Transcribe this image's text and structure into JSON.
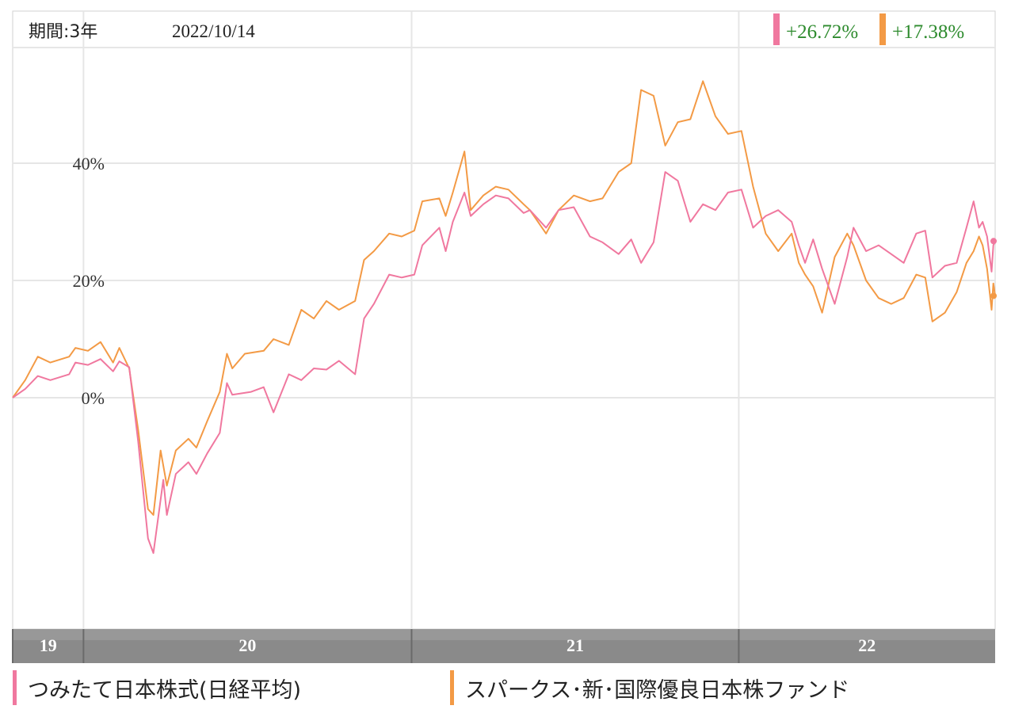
{
  "header": {
    "period_label": "期間:3年",
    "date": "2022/10/14"
  },
  "badges": [
    {
      "text": "+26.72%",
      "color": "#f0789f"
    },
    {
      "text": "+17.38%",
      "color": "#f39a45"
    }
  ],
  "legend": [
    {
      "label": "つみたて日本株式(日経平均)",
      "color": "#f0789f"
    },
    {
      "label": "スパークス･新･国際優良日本株ファンド",
      "color": "#f39a45"
    }
  ],
  "colors": {
    "badge_text": "#2e8b2e",
    "axis_bar": "#8a8a8a",
    "grid": "#e6e6e6"
  },
  "chart_data": {
    "type": "line",
    "x_range": [
      "2019-10-14",
      "2022-10-14"
    ],
    "ylim": [
      -40,
      60
    ],
    "y_ticks": [
      {
        "label": "0%",
        "value": 0
      },
      {
        "label": "20%",
        "value": 20
      },
      {
        "label": "40%",
        "value": 40
      }
    ],
    "x_band_labels": [
      {
        "label": "19",
        "start": "2019-10-14",
        "end": "2020-01-01"
      },
      {
        "label": "20",
        "start": "2020-01-01",
        "end": "2021-01-01"
      },
      {
        "label": "21",
        "start": "2021-01-01",
        "end": "2022-01-01"
      },
      {
        "label": "22",
        "start": "2022-01-01",
        "end": "2022-10-14"
      }
    ],
    "series": [
      {
        "name": "つみたて日本株式(日経平均)",
        "color": "#f0789f",
        "last_value": 26.72,
        "points": [
          [
            "2019-10-14",
            0
          ],
          [
            "2019-10-28",
            1.5
          ],
          [
            "2019-11-11",
            3.7
          ],
          [
            "2019-11-25",
            3.0
          ],
          [
            "2019-12-16",
            4.0
          ],
          [
            "2019-12-23",
            6.0
          ],
          [
            "2020-01-06",
            5.6
          ],
          [
            "2020-01-20",
            6.6
          ],
          [
            "2020-02-03",
            4.5
          ],
          [
            "2020-02-10",
            6.2
          ],
          [
            "2020-02-21",
            5.2
          ],
          [
            "2020-03-02",
            -7.5
          ],
          [
            "2020-03-13",
            -24.0
          ],
          [
            "2020-03-19",
            -26.5
          ],
          [
            "2020-03-30",
            -14.0
          ],
          [
            "2020-04-03",
            -20.0
          ],
          [
            "2020-04-13",
            -13.0
          ],
          [
            "2020-04-27",
            -11.0
          ],
          [
            "2020-05-06",
            -13.0
          ],
          [
            "2020-05-18",
            -9.5
          ],
          [
            "2020-06-01",
            -6.0
          ],
          [
            "2020-06-09",
            2.5
          ],
          [
            "2020-06-15",
            0.5
          ],
          [
            "2020-07-06",
            1.0
          ],
          [
            "2020-07-20",
            1.8
          ],
          [
            "2020-07-31",
            -2.5
          ],
          [
            "2020-08-17",
            4.0
          ],
          [
            "2020-08-31",
            3.0
          ],
          [
            "2020-09-14",
            5.0
          ],
          [
            "2020-09-28",
            4.8
          ],
          [
            "2020-10-12",
            6.3
          ],
          [
            "2020-10-30",
            4.0
          ],
          [
            "2020-11-09",
            13.5
          ],
          [
            "2020-11-20",
            16.0
          ],
          [
            "2020-12-07",
            21.0
          ],
          [
            "2020-12-21",
            20.5
          ],
          [
            "2021-01-04",
            21.0
          ],
          [
            "2021-01-13",
            26.0
          ],
          [
            "2021-02-01",
            29.0
          ],
          [
            "2021-02-08",
            25.0
          ],
          [
            "2021-02-16",
            30.0
          ],
          [
            "2021-03-01",
            35.0
          ],
          [
            "2021-03-08",
            31.0
          ],
          [
            "2021-03-22",
            33.0
          ],
          [
            "2021-04-05",
            34.5
          ],
          [
            "2021-04-19",
            34.0
          ],
          [
            "2021-05-06",
            31.5
          ],
          [
            "2021-05-13",
            32.0
          ],
          [
            "2021-05-31",
            29.0
          ],
          [
            "2021-06-14",
            32.0
          ],
          [
            "2021-07-01",
            32.5
          ],
          [
            "2021-07-19",
            27.5
          ],
          [
            "2021-08-02",
            26.5
          ],
          [
            "2021-08-20",
            24.5
          ],
          [
            "2021-09-03",
            27.0
          ],
          [
            "2021-09-14",
            23.0
          ],
          [
            "2021-09-28",
            26.5
          ],
          [
            "2021-10-11",
            38.5
          ],
          [
            "2021-10-25",
            37.0
          ],
          [
            "2021-11-08",
            30.0
          ],
          [
            "2021-11-22",
            33.0
          ],
          [
            "2021-12-06",
            32.0
          ],
          [
            "2021-12-20",
            35.0
          ],
          [
            "2022-01-04",
            35.5
          ],
          [
            "2022-01-17",
            29.0
          ],
          [
            "2022-01-31",
            31.0
          ],
          [
            "2022-02-14",
            32.0
          ],
          [
            "2022-03-01",
            30.0
          ],
          [
            "2022-03-09",
            26.0
          ],
          [
            "2022-03-16",
            23.0
          ],
          [
            "2022-03-25",
            27.0
          ],
          [
            "2022-04-04",
            22.0
          ],
          [
            "2022-04-18",
            16.0
          ],
          [
            "2022-05-02",
            24.0
          ],
          [
            "2022-05-09",
            29.0
          ],
          [
            "2022-05-23",
            25.0
          ],
          [
            "2022-06-06",
            26.0
          ],
          [
            "2022-06-20",
            24.5
          ],
          [
            "2022-07-04",
            23.0
          ],
          [
            "2022-07-18",
            28.0
          ],
          [
            "2022-07-28",
            28.5
          ],
          [
            "2022-08-05",
            20.5
          ],
          [
            "2022-08-19",
            22.5
          ],
          [
            "2022-09-01",
            23.0
          ],
          [
            "2022-09-12",
            29.0
          ],
          [
            "2022-09-20",
            33.5
          ],
          [
            "2022-09-26",
            29.0
          ],
          [
            "2022-09-30",
            30.0
          ],
          [
            "2022-10-05",
            27.5
          ],
          [
            "2022-10-10",
            21.5
          ],
          [
            "2022-10-12",
            26.0
          ],
          [
            "2022-10-14",
            26.72
          ]
        ]
      },
      {
        "name": "スパークス･新･国際優良日本株ファンド",
        "color": "#f39a45",
        "last_value": 17.38,
        "points": [
          [
            "2019-10-14",
            0
          ],
          [
            "2019-10-28",
            3.0
          ],
          [
            "2019-11-11",
            7.0
          ],
          [
            "2019-11-25",
            6.0
          ],
          [
            "2019-12-16",
            7.0
          ],
          [
            "2019-12-23",
            8.5
          ],
          [
            "2020-01-06",
            8.0
          ],
          [
            "2020-01-20",
            9.5
          ],
          [
            "2020-02-03",
            6.0
          ],
          [
            "2020-02-10",
            8.5
          ],
          [
            "2020-02-21",
            5.0
          ],
          [
            "2020-03-02",
            -5.5
          ],
          [
            "2020-03-13",
            -19.0
          ],
          [
            "2020-03-19",
            -20.0
          ],
          [
            "2020-03-27",
            -9.0
          ],
          [
            "2020-04-03",
            -15.0
          ],
          [
            "2020-04-13",
            -9.0
          ],
          [
            "2020-04-27",
            -7.0
          ],
          [
            "2020-05-06",
            -8.5
          ],
          [
            "2020-05-18",
            -4.0
          ],
          [
            "2020-06-01",
            1.0
          ],
          [
            "2020-06-09",
            7.5
          ],
          [
            "2020-06-15",
            5.0
          ],
          [
            "2020-06-29",
            7.5
          ],
          [
            "2020-07-20",
            8.0
          ],
          [
            "2020-07-31",
            10.0
          ],
          [
            "2020-08-17",
            9.0
          ],
          [
            "2020-08-31",
            15.0
          ],
          [
            "2020-09-14",
            13.5
          ],
          [
            "2020-09-28",
            16.5
          ],
          [
            "2020-10-12",
            15.0
          ],
          [
            "2020-10-30",
            16.5
          ],
          [
            "2020-11-09",
            23.5
          ],
          [
            "2020-11-20",
            25.0
          ],
          [
            "2020-12-07",
            28.0
          ],
          [
            "2020-12-21",
            27.5
          ],
          [
            "2021-01-04",
            28.5
          ],
          [
            "2021-01-13",
            33.5
          ],
          [
            "2021-02-01",
            34.0
          ],
          [
            "2021-02-08",
            31.0
          ],
          [
            "2021-02-16",
            35.0
          ],
          [
            "2021-03-01",
            42.0
          ],
          [
            "2021-03-08",
            32.0
          ],
          [
            "2021-03-22",
            34.5
          ],
          [
            "2021-04-05",
            36.0
          ],
          [
            "2021-04-19",
            35.5
          ],
          [
            "2021-05-06",
            33.0
          ],
          [
            "2021-05-13",
            32.0
          ],
          [
            "2021-05-31",
            28.0
          ],
          [
            "2021-06-14",
            32.0
          ],
          [
            "2021-07-01",
            34.5
          ],
          [
            "2021-07-19",
            33.5
          ],
          [
            "2021-08-02",
            34.0
          ],
          [
            "2021-08-20",
            38.5
          ],
          [
            "2021-09-03",
            40.0
          ],
          [
            "2021-09-14",
            52.5
          ],
          [
            "2021-09-28",
            51.5
          ],
          [
            "2021-10-11",
            43.0
          ],
          [
            "2021-10-25",
            47.0
          ],
          [
            "2021-11-08",
            47.5
          ],
          [
            "2021-11-22",
            54.0
          ],
          [
            "2021-12-06",
            48.0
          ],
          [
            "2021-12-20",
            45.0
          ],
          [
            "2022-01-04",
            45.5
          ],
          [
            "2022-01-17",
            36.0
          ],
          [
            "2022-01-31",
            28.0
          ],
          [
            "2022-02-14",
            25.0
          ],
          [
            "2022-03-01",
            28.0
          ],
          [
            "2022-03-09",
            23.0
          ],
          [
            "2022-03-16",
            21.0
          ],
          [
            "2022-03-25",
            19.0
          ],
          [
            "2022-04-04",
            14.5
          ],
          [
            "2022-04-18",
            24.0
          ],
          [
            "2022-05-02",
            28.0
          ],
          [
            "2022-05-09",
            26.0
          ],
          [
            "2022-05-23",
            20.0
          ],
          [
            "2022-06-06",
            17.0
          ],
          [
            "2022-06-20",
            16.0
          ],
          [
            "2022-07-04",
            17.0
          ],
          [
            "2022-07-18",
            21.0
          ],
          [
            "2022-07-28",
            20.5
          ],
          [
            "2022-08-05",
            13.0
          ],
          [
            "2022-08-19",
            14.5
          ],
          [
            "2022-09-01",
            18.0
          ],
          [
            "2022-09-12",
            23.0
          ],
          [
            "2022-09-20",
            25.0
          ],
          [
            "2022-09-26",
            27.5
          ],
          [
            "2022-09-30",
            26.0
          ],
          [
            "2022-10-05",
            22.0
          ],
          [
            "2022-10-10",
            15.0
          ],
          [
            "2022-10-12",
            19.5
          ],
          [
            "2022-10-14",
            17.38
          ]
        ]
      }
    ]
  }
}
